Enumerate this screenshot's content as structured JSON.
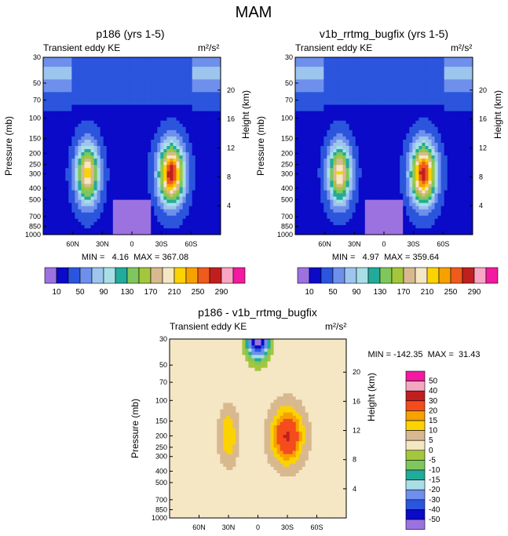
{
  "figure": {
    "title": "MAM"
  },
  "chart_data": [
    {
      "type": "heatmap",
      "title": "p186 (yrs 1-5)",
      "left_label": "Transient eddy KE",
      "units": "m²/s²",
      "ylabel": "Pressure (mb)",
      "y2label": "Height (km)",
      "x_ticks": [
        "60N",
        "30N",
        "0",
        "30S",
        "60S"
      ],
      "y_ticks": [
        "30",
        "50",
        "70",
        "100",
        "150",
        "200",
        "250",
        "300",
        "400",
        "500",
        "700",
        "850",
        "1000"
      ],
      "y2_ticks": [
        "20",
        "16",
        "12",
        "8",
        "4"
      ],
      "min_text": "MIN =   4.16  MAX = 367.08",
      "levels": [
        "10",
        "50",
        "90",
        "130",
        "170",
        "210",
        "250",
        "290"
      ],
      "peaks": [
        {
          "lat": -40,
          "pressure": 300,
          "value": 265,
          "width": 12
        },
        {
          "lat": 45,
          "pressure": 300,
          "value": 195,
          "width": 11
        }
      ]
    },
    {
      "type": "heatmap",
      "title": "v1b_rrtmg_bugfix (yrs 1-5)",
      "left_label": "Transient eddy KE",
      "units": "m²/s²",
      "ylabel": "Pressure (mb)",
      "y2label": "Height (km)",
      "x_ticks": [
        "60N",
        "30N",
        "0",
        "30S",
        "60S"
      ],
      "y_ticks": [
        "30",
        "50",
        "70",
        "100",
        "150",
        "200",
        "250",
        "300",
        "400",
        "500",
        "700",
        "850",
        "1000"
      ],
      "y2_ticks": [
        "20",
        "16",
        "12",
        "8",
        "4"
      ],
      "min_text": "MIN =   4.97  MAX = 359.64",
      "levels": [
        "10",
        "50",
        "90",
        "130",
        "170",
        "210",
        "250",
        "290"
      ],
      "peaks": [
        {
          "lat": -40,
          "pressure": 300,
          "value": 262,
          "width": 12
        },
        {
          "lat": 45,
          "pressure": 300,
          "value": 190,
          "width": 11
        }
      ]
    },
    {
      "type": "heatmap",
      "title": "p186 - v1b_rrtmg_bugfix",
      "left_label": "Transient eddy KE",
      "units": "m²/s²",
      "ylabel": "Pressure (mb)",
      "y2label": "Height (km)",
      "x_ticks": [
        "60N",
        "30N",
        "0",
        "30S",
        "60S"
      ],
      "y_ticks": [
        "30",
        "50",
        "70",
        "100",
        "150",
        "200",
        "250",
        "300",
        "400",
        "500",
        "700",
        "850",
        "1000"
      ],
      "y2_ticks": [
        "20",
        "16",
        "12",
        "8",
        "4"
      ],
      "min_text": "MIN = -142.35  MAX =  31.43",
      "levels": [
        "50",
        "40",
        "30",
        "20",
        "15",
        "10",
        "5",
        "0",
        "-5",
        "-10",
        "-15",
        "-20",
        "-30",
        "-40",
        "-50"
      ],
      "peaks": [
        {
          "lat": -30,
          "pressure": 200,
          "value": 28,
          "width": 15
        },
        {
          "lat": 30,
          "pressure": 200,
          "value": 12,
          "width": 9
        }
      ]
    }
  ]
}
